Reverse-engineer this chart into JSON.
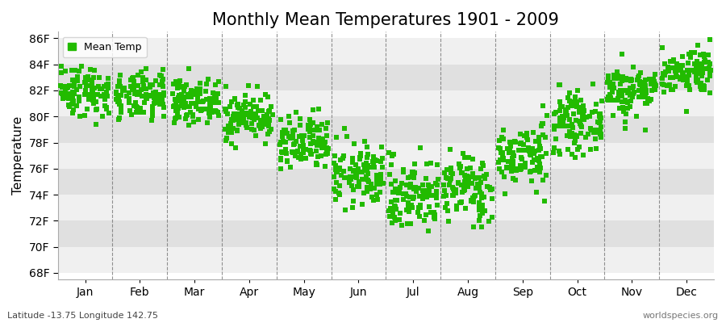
{
  "title": "Monthly Mean Temperatures 1901 - 2009",
  "ylabel": "Temperature",
  "xlabel_labels": [
    "Jan",
    "Feb",
    "Mar",
    "Apr",
    "May",
    "Jun",
    "Jul",
    "Aug",
    "Sep",
    "Oct",
    "Nov",
    "Dec"
  ],
  "ytick_labels": [
    "68F",
    "70F",
    "72F",
    "74F",
    "76F",
    "78F",
    "80F",
    "82F",
    "84F",
    "86F"
  ],
  "ytick_values": [
    68,
    70,
    72,
    74,
    76,
    78,
    80,
    82,
    84,
    86
  ],
  "ylim": [
    67.5,
    86.5
  ],
  "marker_color": "#22bb00",
  "marker": "s",
  "marker_size": 4,
  "bg_color": "#ffffff",
  "stripe_color_dark": "#e8e8e8",
  "stripe_color_light": "#f2f2f2",
  "vline_color": "#666666",
  "title_fontsize": 15,
  "axis_fontsize": 11,
  "tick_fontsize": 10,
  "legend_label": "Mean Temp",
  "footnote_left": "Latitude -13.75 Longitude 142.75",
  "footnote_right": "worldspecies.org",
  "n_years": 109,
  "monthly_mean_temps": [
    82.0,
    81.5,
    81.2,
    80.0,
    77.8,
    75.5,
    74.0,
    74.5,
    77.0,
    79.5,
    82.0,
    83.5
  ],
  "monthly_std": [
    1.0,
    0.9,
    0.8,
    0.9,
    1.1,
    1.2,
    1.4,
    1.3,
    1.2,
    1.1,
    1.0,
    0.9
  ]
}
